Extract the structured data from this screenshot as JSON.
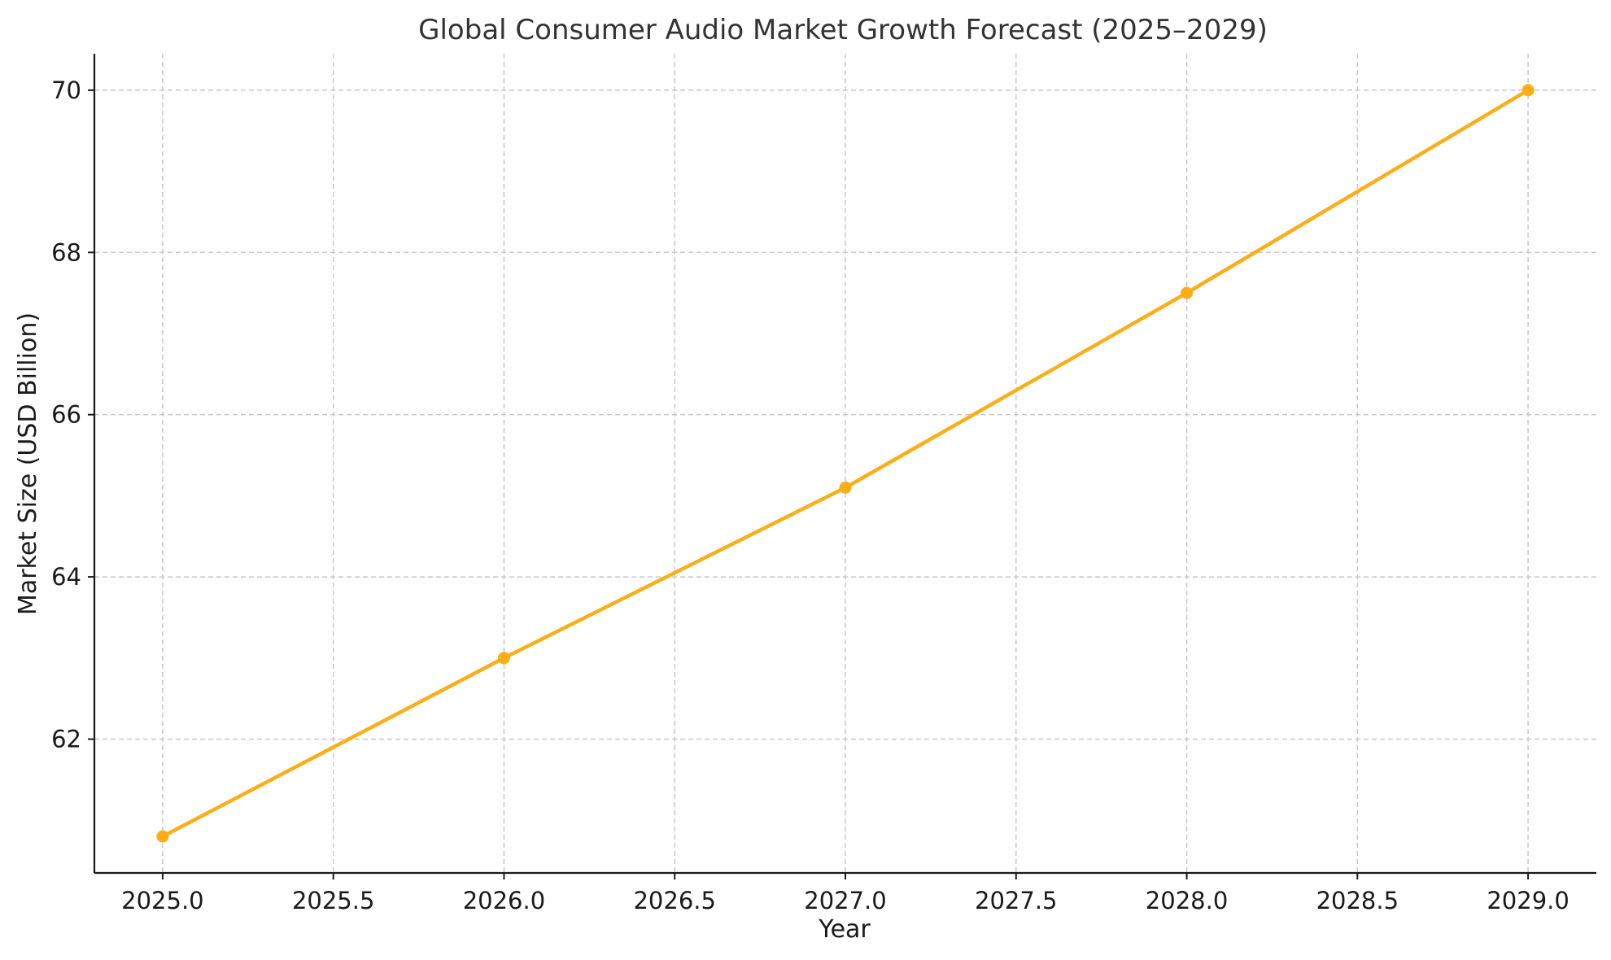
{
  "chart_data": {
    "type": "line",
    "title": "Global Consumer Audio Market Growth Forecast (2025–2029)",
    "xlabel": "Year",
    "ylabel": "Market Size (USD Billion)",
    "x": [
      2025,
      2026,
      2027,
      2028,
      2029
    ],
    "series": [
      {
        "values": [
          60.8,
          63.0,
          65.1,
          67.5,
          70.0
        ]
      }
    ],
    "xlim": [
      2024.8,
      2029.2
    ],
    "ylim": [
      60.35,
      70.45
    ],
    "x_ticks": [
      2025.0,
      2025.5,
      2026.0,
      2026.5,
      2027.0,
      2027.5,
      2028.0,
      2028.5,
      2029.0
    ],
    "x_tick_labels": [
      "2025.0",
      "2025.5",
      "2026.0",
      "2026.5",
      "2027.0",
      "2027.5",
      "2028.0",
      "2028.5",
      "2029.0"
    ],
    "y_ticks": [
      62,
      64,
      66,
      68,
      70
    ],
    "y_tick_labels": [
      "62",
      "64",
      "66",
      "68",
      "70"
    ],
    "grid": true,
    "line_color": "#FBAE17",
    "marker": "circle"
  }
}
